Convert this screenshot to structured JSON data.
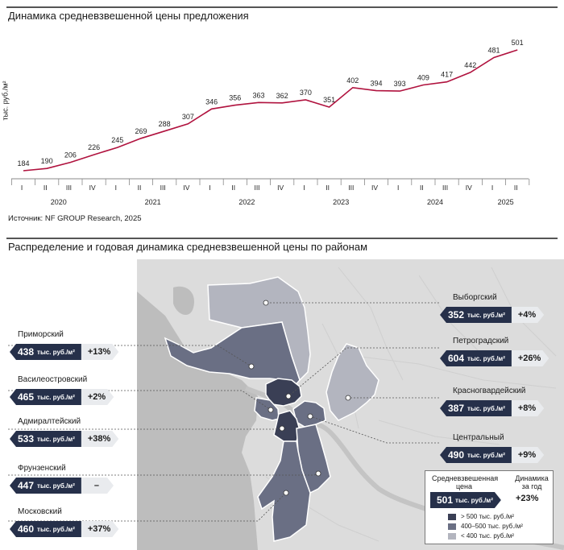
{
  "section1": {
    "title": "Динамика средневзвешенной цены предложения",
    "ylabel": "тыс. руб./м²",
    "source": "Источник: NF GROUP Research, 2025"
  },
  "section2": {
    "title": "Распределение и годовая динамика средневзвешенной цены по районам"
  },
  "chart_data": {
    "type": "line",
    "title": "Динамика средневзвешенной цены предложения",
    "ylabel": "тыс. руб./м²",
    "color": "#b0123e",
    "quarters": [
      "I",
      "II",
      "III",
      "IV",
      "I",
      "II",
      "III",
      "IV",
      "I",
      "II",
      "III",
      "IV",
      "I",
      "II",
      "III",
      "IV",
      "I",
      "II",
      "III",
      "IV",
      "I",
      "II"
    ],
    "years": [
      {
        "label": "2020",
        "span": 4
      },
      {
        "label": "2021",
        "span": 4
      },
      {
        "label": "2022",
        "span": 4
      },
      {
        "label": "2023",
        "span": 4
      },
      {
        "label": "2024",
        "span": 4
      },
      {
        "label": "2025",
        "span": 2
      }
    ],
    "values": [
      184,
      190,
      206,
      226,
      245,
      269,
      288,
      307,
      346,
      356,
      363,
      362,
      370,
      351,
      402,
      394,
      393,
      409,
      417,
      442,
      481,
      501
    ],
    "grid": false,
    "legend": "none"
  },
  "districts": {
    "left": [
      {
        "name": "Приморский",
        "price": "438",
        "unit": "тыс. руб./м²",
        "change": "+13%"
      },
      {
        "name": "Василеостровский",
        "price": "465",
        "unit": "тыс. руб./м²",
        "change": "+2%"
      },
      {
        "name": "Адмиралтейский",
        "price": "533",
        "unit": "тыс. руб./м²",
        "change": "+38%"
      },
      {
        "name": "Фрунзенский",
        "price": "447",
        "unit": "тыс. руб./м²",
        "change": "–"
      },
      {
        "name": "Московский",
        "price": "460",
        "unit": "тыс. руб./м²",
        "change": "+37%"
      }
    ],
    "right": [
      {
        "name": "Выборгский",
        "price": "352",
        "unit": "тыс. руб./м²",
        "change": "+4%"
      },
      {
        "name": "Петроградский",
        "price": "604",
        "unit": "тыс. руб./м²",
        "change": "+26%"
      },
      {
        "name": "Красногвардейский",
        "price": "387",
        "unit": "тыс. руб./м²",
        "change": "+8%"
      },
      {
        "name": "Центральный",
        "price": "490",
        "unit": "тыс. руб./м²",
        "change": "+9%"
      }
    ]
  },
  "legend": {
    "header_price": "Средневзвешенная цена",
    "header_change": "Динамика за год",
    "price": "501",
    "unit": "тыс. руб./м²",
    "change": "+23%",
    "ranges": [
      {
        "label": "> 500 тыс. руб./м²",
        "color": "#3a3f55"
      },
      {
        "label": "400–500 тыс. руб./м²",
        "color": "#6a6f84"
      },
      {
        "label": "< 400 тыс. руб./м²",
        "color": "#b3b5bf"
      }
    ]
  },
  "map_colors": {
    "land": "#dcdcdc",
    "water": "#bdbdbd",
    "dark": "#3a3f55",
    "mid": "#6a6f84",
    "light": "#b3b5bf"
  }
}
